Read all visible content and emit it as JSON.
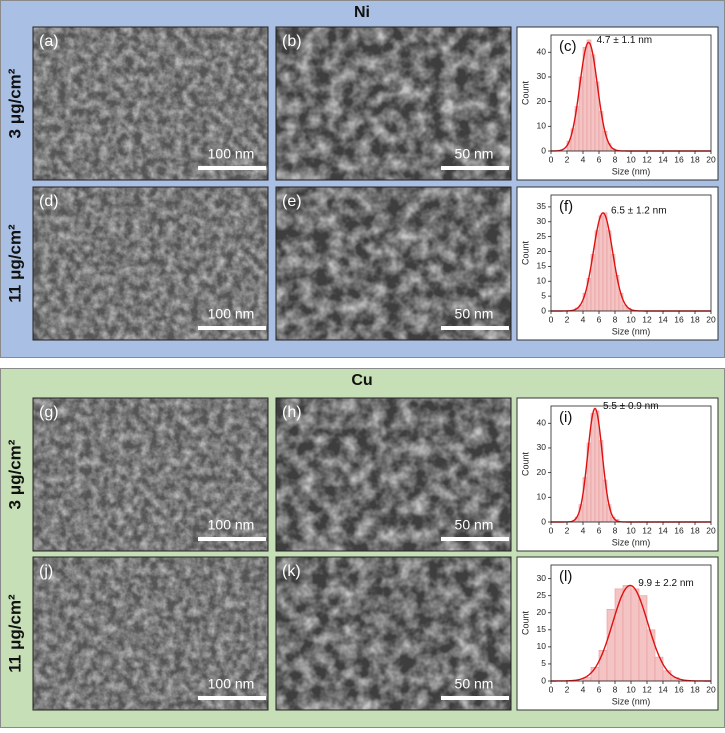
{
  "sections": [
    {
      "title": "Ni",
      "rows": [
        {
          "label": "3 μg/cm²",
          "images": [
            {
              "panel": "(a)",
              "scale": "100 nm"
            },
            {
              "panel": "(b)",
              "scale": "50 nm"
            }
          ]
        },
        {
          "label": "11 μg/cm²",
          "images": [
            {
              "panel": "(d)",
              "scale": "100 nm"
            },
            {
              "panel": "(e)",
              "scale": "50 nm"
            }
          ]
        }
      ]
    },
    {
      "title": "Cu",
      "rows": [
        {
          "label": "3 μg/cm²",
          "images": [
            {
              "panel": "(g)",
              "scale": "100 nm"
            },
            {
              "panel": "(h)",
              "scale": "50 nm"
            }
          ]
        },
        {
          "label": "11 μg/cm²",
          "images": [
            {
              "panel": "(j)",
              "scale": "100 nm"
            },
            {
              "panel": "(k)",
              "scale": "50 nm"
            }
          ]
        }
      ]
    }
  ],
  "chart_data": [
    {
      "type": "histogram",
      "panel": "(c)",
      "annotation": "4.7 ± 1.1 nm",
      "x_label": "Size (nm)",
      "y_label": "Count",
      "bins": [
        2,
        2.5,
        3,
        3.5,
        4,
        4.5,
        5,
        5.5,
        6,
        6.5,
        7,
        7.5,
        8
      ],
      "counts": [
        4,
        9,
        18,
        30,
        42,
        45,
        39,
        28,
        16,
        8,
        3,
        1
      ],
      "fit": {
        "mean": 4.7,
        "sd": 1.1,
        "peak": 44
      },
      "xlim": [
        0,
        20
      ],
      "xticks": [
        0,
        2,
        4,
        6,
        8,
        10,
        12,
        14,
        16,
        18,
        20
      ],
      "ylim": [
        0,
        47
      ],
      "yticks": [
        0,
        10,
        20,
        30,
        40
      ],
      "color": "#f4c4c4",
      "fit_color": "#e01010"
    },
    {
      "type": "histogram",
      "panel": "(f)",
      "annotation": "6.5 ± 1.2 nm",
      "x_label": "Size (nm)",
      "y_label": "Count",
      "bins": [
        3,
        3.5,
        4,
        4.5,
        5,
        5.5,
        6,
        6.5,
        7,
        7.5,
        8,
        8.5,
        9,
        9.5,
        10
      ],
      "counts": [
        1,
        2,
        6,
        11,
        19,
        27,
        32,
        33,
        27,
        19,
        12,
        6,
        2,
        1
      ],
      "fit": {
        "mean": 6.5,
        "sd": 1.2,
        "peak": 33
      },
      "xlim": [
        0,
        20
      ],
      "xticks": [
        0,
        2,
        4,
        6,
        8,
        10,
        12,
        14,
        16,
        18,
        20
      ],
      "ylim": [
        0,
        39
      ],
      "yticks": [
        0,
        5,
        10,
        15,
        20,
        25,
        30,
        35
      ],
      "color": "#f4c4c4",
      "fit_color": "#e01010"
    },
    {
      "type": "histogram",
      "panel": "(i)",
      "annotation": "5.5 ± 0.9 nm",
      "x_label": "Size (nm)",
      "y_label": "Count",
      "bins": [
        3,
        3.5,
        4,
        4.5,
        5,
        5.5,
        6,
        6.5,
        7,
        7.5,
        8,
        8.5
      ],
      "counts": [
        2,
        7,
        18,
        32,
        44,
        45,
        33,
        17,
        7,
        2,
        1
      ],
      "fit": {
        "mean": 5.5,
        "sd": 0.9,
        "peak": 46
      },
      "xlim": [
        0,
        20
      ],
      "xticks": [
        0,
        2,
        4,
        6,
        8,
        10,
        12,
        14,
        16,
        18,
        20
      ],
      "ylim": [
        0,
        47
      ],
      "yticks": [
        0,
        10,
        20,
        30,
        40
      ],
      "color": "#f4c4c4",
      "fit_color": "#e01010"
    },
    {
      "type": "histogram",
      "panel": "(l)",
      "annotation": "9.9 ± 2.2 nm",
      "x_label": "Size (nm)",
      "y_label": "Count",
      "bins": [
        4,
        5,
        6,
        7,
        8,
        9,
        10,
        11,
        12,
        13,
        14,
        15,
        16
      ],
      "counts": [
        1,
        4,
        9,
        21,
        27,
        28,
        27,
        25,
        15,
        7,
        3,
        1
      ],
      "fit": {
        "mean": 9.9,
        "sd": 2.2,
        "peak": 28
      },
      "xlim": [
        0,
        20
      ],
      "xticks": [
        0,
        2,
        4,
        6,
        8,
        10,
        12,
        14,
        16,
        18,
        20
      ],
      "ylim": [
        0,
        34
      ],
      "yticks": [
        0,
        5,
        10,
        15,
        20,
        25,
        30
      ],
      "color": "#f4c4c4",
      "fit_color": "#e01010"
    }
  ]
}
